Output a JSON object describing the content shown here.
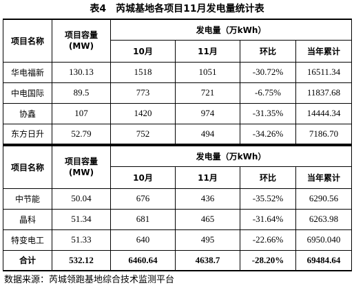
{
  "title": "表4　芮城基地各项目11月发电量统计表",
  "table1": {
    "headers": {
      "name": "项目名称",
      "capacity_line1": "项目容量",
      "capacity_line2": "(MW)",
      "gen": "发电量（万kWh）",
      "oct": "10月",
      "nov": "11月",
      "mom": "环比",
      "ytd": "当年累计"
    },
    "rows": [
      {
        "name": "华电福新",
        "capacity": "130.13",
        "oct": "1518",
        "nov": "1051",
        "mom": "-30.72%",
        "ytd": "16511.34"
      },
      {
        "name": "中电国际",
        "capacity": "89.5",
        "oct": "773",
        "nov": "721",
        "mom": "-6.75%",
        "ytd": "11837.68"
      },
      {
        "name": "协鑫",
        "capacity": "107",
        "oct": "1420",
        "nov": "974",
        "mom": "-31.35%",
        "ytd": "14444.34"
      },
      {
        "name": "东方日升",
        "capacity": "52.79",
        "oct": "752",
        "nov": "494",
        "mom": "-34.26%",
        "ytd": "7186.70"
      }
    ]
  },
  "table2": {
    "headers": {
      "name": "项目名称",
      "capacity_line1": "项目容量",
      "capacity_line2": "(MW)",
      "gen": "发电量（万kWh）",
      "oct": "10月",
      "nov": "11月",
      "mom": "环比",
      "ytd": "当年累计"
    },
    "rows": [
      {
        "name": "中节能",
        "capacity": "50.04",
        "oct": "676",
        "nov": "436",
        "mom": "-35.52%",
        "ytd": "6290.56"
      },
      {
        "name": "晶科",
        "capacity": "51.34",
        "oct": "681",
        "nov": "465",
        "mom": "-31.64%",
        "ytd": "6263.98"
      },
      {
        "name": "特变电工",
        "capacity": "51.33",
        "oct": "640",
        "nov": "495",
        "mom": "-22.66%",
        "ytd": "6950.040"
      }
    ],
    "total": {
      "name": "合计",
      "capacity": "532.12",
      "oct": "6460.64",
      "nov": "4638.7",
      "mom": "-28.20%",
      "ytd": "69484.64"
    }
  },
  "source": "数据来源：芮城领跑基地综合技术监测平台"
}
